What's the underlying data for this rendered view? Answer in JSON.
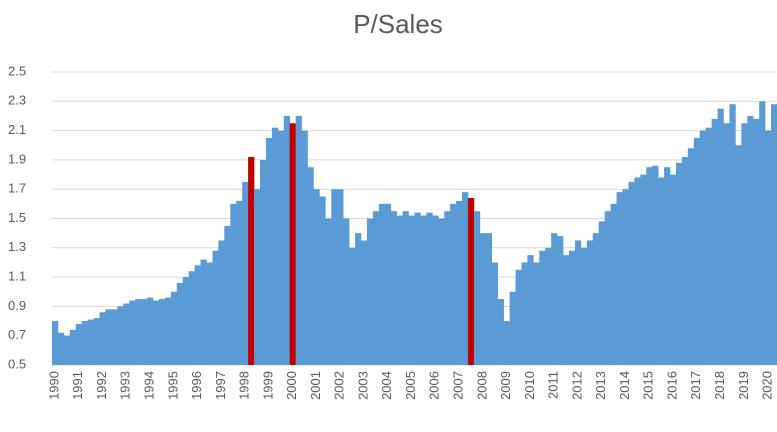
{
  "chart_data": {
    "type": "bar",
    "title": "P/Sales",
    "categories": [
      "1990",
      null,
      null,
      null,
      "1991",
      null,
      null,
      null,
      "1992",
      null,
      null,
      null,
      "1993",
      null,
      null,
      null,
      "1994",
      null,
      null,
      null,
      "1995",
      null,
      null,
      null,
      "1996",
      null,
      null,
      null,
      "1997",
      null,
      null,
      null,
      "1998",
      null,
      null,
      null,
      "1999",
      null,
      null,
      null,
      "2000",
      null,
      null,
      null,
      "2001",
      null,
      null,
      null,
      "2002",
      null,
      null,
      null,
      "2003",
      null,
      null,
      null,
      "2004",
      null,
      null,
      null,
      "2005",
      null,
      null,
      null,
      "2006",
      null,
      null,
      null,
      "2007",
      null,
      null,
      null,
      "2008",
      null,
      null,
      null,
      "2009",
      null,
      null,
      null,
      "2010",
      null,
      null,
      null,
      "2011",
      null,
      null,
      null,
      "2012",
      null,
      null,
      null,
      "2013",
      null,
      null,
      null,
      "2014",
      null,
      null,
      null,
      "2015",
      null,
      null,
      null,
      "2016",
      null,
      null,
      null,
      "2017",
      null,
      null,
      null,
      "2018",
      null,
      null,
      null,
      "2019",
      null,
      null,
      null,
      "2020",
      null
    ],
    "values": [
      0.8,
      0.72,
      0.7,
      0.74,
      0.78,
      0.8,
      0.81,
      0.82,
      0.86,
      0.88,
      0.88,
      0.9,
      0.92,
      0.94,
      0.95,
      0.95,
      0.96,
      0.94,
      0.95,
      0.96,
      1.0,
      1.06,
      1.1,
      1.14,
      1.18,
      1.22,
      1.2,
      1.28,
      1.35,
      1.45,
      1.6,
      1.62,
      1.75,
      1.92,
      1.7,
      1.9,
      2.05,
      2.12,
      2.1,
      2.2,
      2.15,
      2.2,
      2.1,
      1.85,
      1.7,
      1.65,
      1.5,
      1.7,
      1.7,
      1.5,
      1.3,
      1.4,
      1.35,
      1.5,
      1.55,
      1.6,
      1.6,
      1.55,
      1.52,
      1.55,
      1.52,
      1.54,
      1.52,
      1.54,
      1.52,
      1.5,
      1.55,
      1.6,
      1.62,
      1.68,
      1.64,
      1.55,
      1.4,
      1.4,
      1.2,
      0.95,
      0.8,
      1.0,
      1.15,
      1.2,
      1.25,
      1.2,
      1.28,
      1.3,
      1.4,
      1.38,
      1.25,
      1.28,
      1.35,
      1.3,
      1.35,
      1.4,
      1.48,
      1.55,
      1.6,
      1.68,
      1.7,
      1.75,
      1.78,
      1.8,
      1.85,
      1.86,
      1.78,
      1.85,
      1.8,
      1.88,
      1.92,
      1.98,
      2.05,
      2.1,
      2.12,
      2.18,
      2.25,
      2.15,
      2.28,
      2.0,
      2.15,
      2.2,
      2.18,
      2.3,
      2.1,
      2.28
    ],
    "colors": [
      "#5b9bd5",
      "#5b9bd5",
      "#5b9bd5",
      "#5b9bd5",
      "#5b9bd5",
      "#5b9bd5",
      "#5b9bd5",
      "#5b9bd5",
      "#5b9bd5",
      "#5b9bd5",
      "#5b9bd5",
      "#5b9bd5",
      "#5b9bd5",
      "#5b9bd5",
      "#5b9bd5",
      "#5b9bd5",
      "#5b9bd5",
      "#5b9bd5",
      "#5b9bd5",
      "#5b9bd5",
      "#5b9bd5",
      "#5b9bd5",
      "#5b9bd5",
      "#5b9bd5",
      "#5b9bd5",
      "#5b9bd5",
      "#5b9bd5",
      "#5b9bd5",
      "#5b9bd5",
      "#5b9bd5",
      "#5b9bd5",
      "#5b9bd5",
      "#5b9bd5",
      "#c00000",
      "#5b9bd5",
      "#5b9bd5",
      "#5b9bd5",
      "#5b9bd5",
      "#5b9bd5",
      "#5b9bd5",
      "#c00000",
      "#5b9bd5",
      "#5b9bd5",
      "#5b9bd5",
      "#5b9bd5",
      "#5b9bd5",
      "#5b9bd5",
      "#5b9bd5",
      "#5b9bd5",
      "#5b9bd5",
      "#5b9bd5",
      "#5b9bd5",
      "#5b9bd5",
      "#5b9bd5",
      "#5b9bd5",
      "#5b9bd5",
      "#5b9bd5",
      "#5b9bd5",
      "#5b9bd5",
      "#5b9bd5",
      "#5b9bd5",
      "#5b9bd5",
      "#5b9bd5",
      "#5b9bd5",
      "#5b9bd5",
      "#5b9bd5",
      "#5b9bd5",
      "#5b9bd5",
      "#5b9bd5",
      "#5b9bd5",
      "#c00000",
      "#5b9bd5",
      "#5b9bd5",
      "#5b9bd5",
      "#5b9bd5",
      "#5b9bd5",
      "#5b9bd5",
      "#5b9bd5",
      "#5b9bd5",
      "#5b9bd5",
      "#5b9bd5",
      "#5b9bd5",
      "#5b9bd5",
      "#5b9bd5",
      "#5b9bd5",
      "#5b9bd5",
      "#5b9bd5",
      "#5b9bd5",
      "#5b9bd5",
      "#5b9bd5",
      "#5b9bd5",
      "#5b9bd5",
      "#5b9bd5",
      "#5b9bd5",
      "#5b9bd5",
      "#5b9bd5",
      "#5b9bd5",
      "#5b9bd5",
      "#5b9bd5",
      "#5b9bd5",
      "#5b9bd5",
      "#5b9bd5",
      "#5b9bd5",
      "#5b9bd5",
      "#5b9bd5",
      "#5b9bd5",
      "#5b9bd5",
      "#5b9bd5",
      "#5b9bd5",
      "#5b9bd5",
      "#5b9bd5",
      "#5b9bd5",
      "#5b9bd5",
      "#5b9bd5",
      "#5b9bd5",
      "#5b9bd5",
      "#5b9bd5",
      "#5b9bd5",
      "#5b9bd5",
      "#5b9bd5",
      "#5b9bd5",
      "#5b9bd5"
    ],
    "ylim": [
      0.5,
      2.5
    ],
    "yticks": [
      0.5,
      0.7,
      0.9,
      1.1,
      1.3,
      1.5,
      1.7,
      1.9,
      2.1,
      2.3,
      2.5
    ],
    "grid": true
  }
}
